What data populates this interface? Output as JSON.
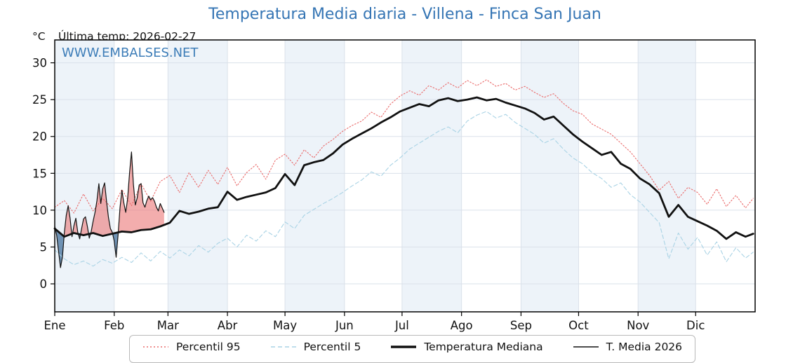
{
  "header": {
    "title": "Temperatura Media diaria - Villena - Finca San Juan",
    "unit_label": "°C",
    "last_temp_label": "Última temp: 2026-02-27",
    "watermark": "WWW.EMBALSES.NET"
  },
  "colors": {
    "title_blue": "#3575b4",
    "watermark_blue": "#3d7db8",
    "p95_red": "#ea6a6a",
    "p5_blue": "#a9d3e5",
    "median_black": "#111111",
    "fill_above": "rgba(236,123,123,0.62)",
    "fill_below": "rgba(88,128,168,0.85)",
    "month_band": "#edf3f9",
    "gridline": "#dae1ea",
    "frame": "#000000",
    "tick_label": "#111111"
  },
  "chart_data": {
    "type": "line",
    "title": "Temperatura Media diaria - Villena - Finca San Juan",
    "xlabel": "",
    "ylabel": "°C",
    "x_tick_labels": [
      "Ene",
      "Feb",
      "Mar",
      "Abr",
      "May",
      "Jun",
      "Jul",
      "Ago",
      "Sep",
      "Oct",
      "Nov",
      "Dic"
    ],
    "month_start_days": [
      0,
      31,
      59,
      90,
      120,
      151,
      181,
      212,
      243,
      273,
      304,
      334
    ],
    "days_in_year": 365,
    "y_ticks": [
      0,
      5,
      10,
      15,
      20,
      25,
      30
    ],
    "ylim": [
      -3.8,
      33.1
    ],
    "grid": true,
    "legend_position": "bottom",
    "annotations": [
      "WWW.EMBALSES.NET"
    ],
    "series": [
      {
        "name": "Percentil 95",
        "style": "dotted",
        "color": "#ea6a6a",
        "width": 1.1,
        "x_start_day": 0,
        "x_step_days": 5,
        "values": [
          10.4,
          11.3,
          9.6,
          12.2,
          9.9,
          11.6,
          10.2,
          12.8,
          10.6,
          13.6,
          11.2,
          13.9,
          14.7,
          12.4,
          15.1,
          13.1,
          15.4,
          13.5,
          15.8,
          13.3,
          15.1,
          16.2,
          14.2,
          16.8,
          17.6,
          16.1,
          18.2,
          17.1,
          18.7,
          19.6,
          20.7,
          21.5,
          22.1,
          23.3,
          22.6,
          24.4,
          25.5,
          26.2,
          25.6,
          26.9,
          26.3,
          27.3,
          26.6,
          27.6,
          26.9,
          27.7,
          26.8,
          27.2,
          26.3,
          26.8,
          26.0,
          25.3,
          25.8,
          24.5,
          23.5,
          23.0,
          21.7,
          21.0,
          20.3,
          19.1,
          17.9,
          16.3,
          14.7,
          12.7,
          13.9,
          11.6,
          13.1,
          12.4,
          10.8,
          12.9,
          10.5,
          12.0,
          10.3,
          11.6
        ]
      },
      {
        "name": "Percentil 5",
        "style": "dashed",
        "color": "#a9d3e5",
        "width": 1.1,
        "x_start_day": 0,
        "x_step_days": 5,
        "values": [
          4.6,
          3.4,
          2.6,
          3.1,
          2.4,
          3.3,
          2.8,
          3.6,
          2.9,
          4.2,
          3.1,
          4.4,
          3.5,
          4.6,
          3.8,
          5.2,
          4.3,
          5.5,
          6.2,
          5.0,
          6.6,
          5.8,
          7.2,
          6.4,
          8.4,
          7.5,
          9.3,
          10.1,
          10.9,
          11.6,
          12.4,
          13.3,
          14.1,
          15.2,
          14.6,
          16.1,
          17.1,
          18.3,
          19.1,
          19.9,
          20.7,
          21.3,
          20.5,
          22.1,
          22.9,
          23.4,
          22.5,
          23.0,
          21.9,
          21.1,
          20.3,
          19.1,
          19.7,
          18.3,
          17.1,
          16.3,
          15.1,
          14.3,
          13.1,
          13.7,
          12.1,
          11.1,
          9.7,
          8.3,
          3.4,
          6.9,
          4.7,
          6.3,
          3.9,
          5.7,
          3.0,
          4.9,
          3.5,
          4.3
        ]
      },
      {
        "name": "Temperatura Mediana",
        "style": "solid",
        "color": "#111111",
        "width": 2.8,
        "x_start_day": 0,
        "x_step_days": 5,
        "values": [
          7.5,
          6.4,
          6.9,
          6.6,
          6.9,
          6.5,
          6.8,
          7.1,
          7.0,
          7.3,
          7.4,
          7.8,
          8.3,
          9.9,
          9.5,
          9.8,
          10.2,
          10.4,
          12.5,
          11.4,
          11.8,
          12.1,
          12.4,
          13.0,
          14.9,
          13.4,
          16.1,
          16.5,
          16.8,
          17.7,
          18.9,
          19.7,
          20.4,
          21.1,
          21.9,
          22.6,
          23.4,
          23.9,
          24.4,
          24.1,
          24.9,
          25.2,
          24.8,
          25.0,
          25.3,
          24.9,
          25.1,
          24.6,
          24.2,
          23.8,
          23.2,
          22.3,
          22.7,
          21.5,
          20.3,
          19.3,
          18.4,
          17.5,
          17.9,
          16.3,
          15.6,
          14.3,
          13.5,
          12.3,
          9.1,
          10.7,
          9.1,
          8.5,
          7.9,
          7.2,
          6.1,
          7.0,
          6.4,
          6.8
        ]
      },
      {
        "name": "T. Media 2026",
        "style": "solid",
        "color": "#111111",
        "width": 1.2,
        "x_start_day": 0,
        "x_step_days": 1,
        "values": [
          7.8,
          6.6,
          4.4,
          2.2,
          3.6,
          6.9,
          9.3,
          10.6,
          8.9,
          6.4,
          7.9,
          8.9,
          7.0,
          6.1,
          7.5,
          8.8,
          9.1,
          7.8,
          6.2,
          7.1,
          8.5,
          9.7,
          11.3,
          13.6,
          10.9,
          12.9,
          13.7,
          11.2,
          9.0,
          7.5,
          7.0,
          5.8,
          3.6,
          6.6,
          10.3,
          12.7,
          11.0,
          9.7,
          11.6,
          15.1,
          17.9,
          13.5,
          10.7,
          11.7,
          13.4,
          13.6,
          11.0,
          10.4,
          11.3,
          11.9,
          11.4,
          11.7,
          11.2,
          10.4,
          9.9,
          10.9,
          10.3,
          9.7
        ]
      }
    ],
    "fill_between": {
      "upper_series": "T. Media 2026",
      "baseline_series": "Temperatura Mediana",
      "above_color": "rgba(236,123,123,0.62)",
      "below_color": "rgba(88,128,168,0.85)"
    }
  },
  "legend": {
    "items": [
      {
        "label": "Percentil 95",
        "swatch": "dotted-red-line"
      },
      {
        "label": "Percentil 5",
        "swatch": "dashed-lightblue-line"
      },
      {
        "label": "Temperatura Mediana",
        "swatch": "thick-black-line"
      },
      {
        "label": "T. Media 2026",
        "swatch": "thin-black-line"
      }
    ]
  }
}
